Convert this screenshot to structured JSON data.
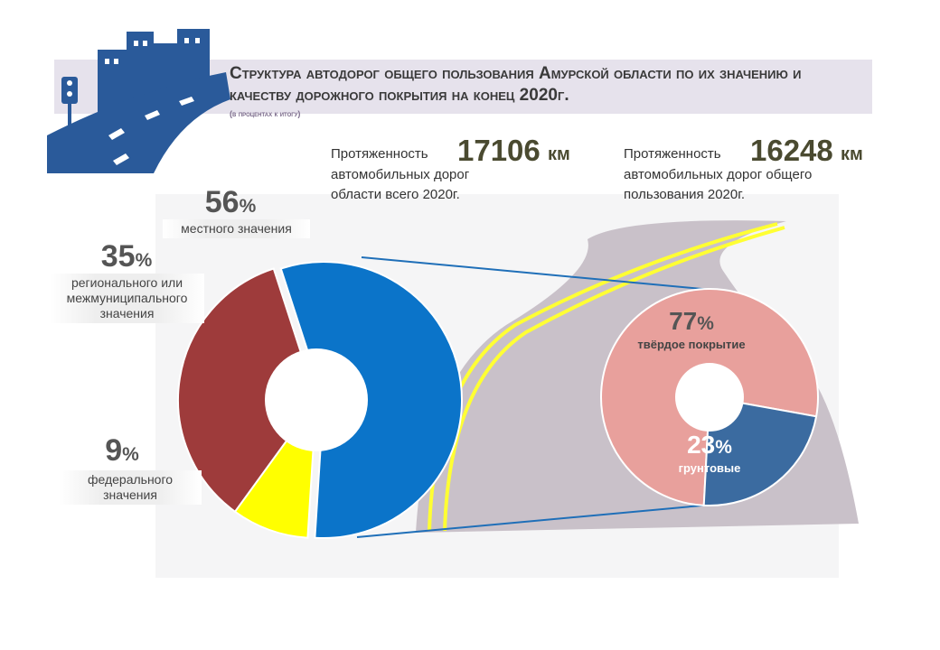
{
  "header": {
    "title": "Структура автодорог общего пользования Амурской области по их значению и качеству дорожного покрытия на конец 2020г.",
    "subtitle": "(в процентах к итогу)"
  },
  "stats": [
    {
      "label": "Протяженность",
      "value": 17106,
      "unit": "км",
      "caption": "автомобильных дорог области всего 2020г."
    },
    {
      "label": "Протяженность",
      "value": 16248,
      "unit": "км",
      "caption": "автомобильных дорог общего пользования 2020г."
    }
  ],
  "chart_data": [
    {
      "type": "pie",
      "categories": [
        "местного значения",
        "регионального или межмуниципального значения",
        "федерального значения"
      ],
      "values": [
        56,
        35,
        9
      ],
      "value_labels": [
        "56%",
        "35%",
        "9%"
      ],
      "colors": [
        "#0b74c9",
        "#9e3b3b",
        "#ffff00"
      ]
    },
    {
      "type": "pie",
      "categories": [
        "твёрдое покрытие",
        "грунтовые"
      ],
      "values": [
        77,
        23
      ],
      "value_labels": [
        "77%",
        "23%"
      ],
      "colors": [
        "#e8a09c",
        "#3b6ba0"
      ]
    }
  ]
}
